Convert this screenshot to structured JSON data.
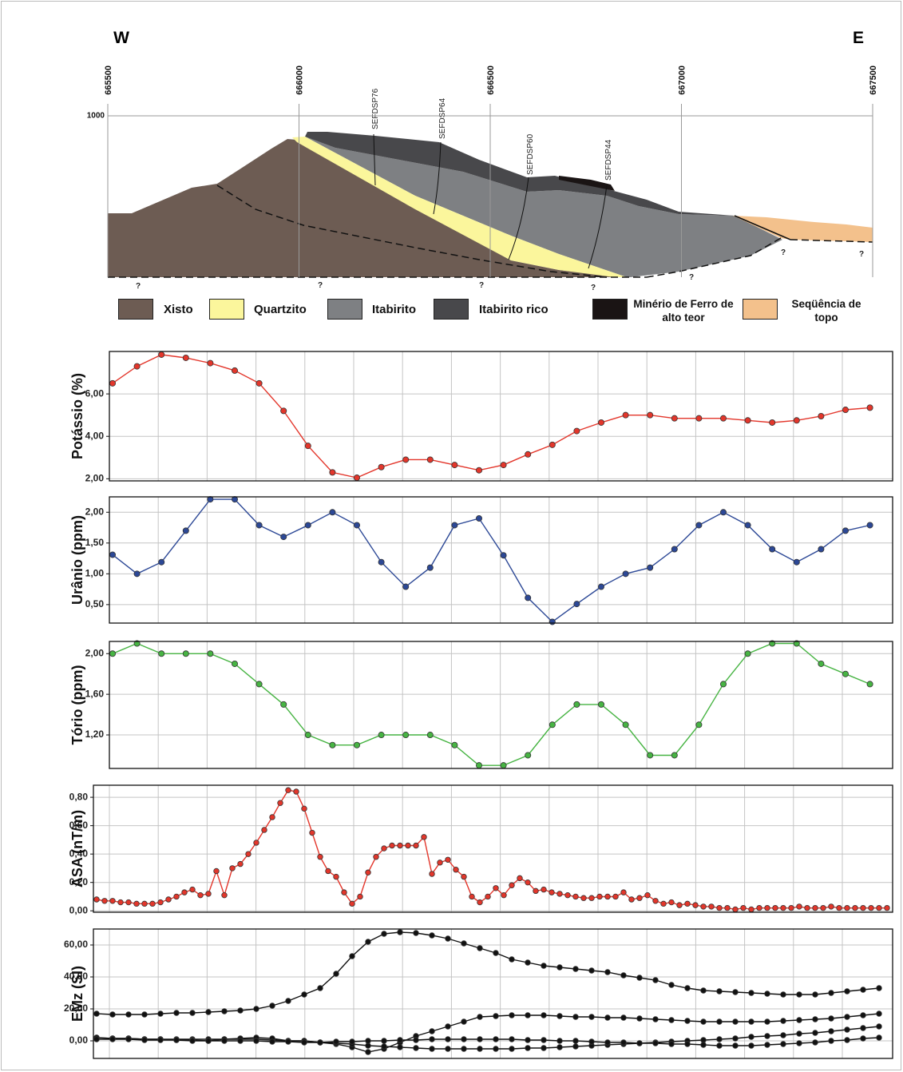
{
  "chart_data": [
    {
      "type": "section",
      "left_label": "W",
      "right_label": "E",
      "xlim": [
        665500,
        667500
      ],
      "xticks": [
        665500,
        666000,
        666500,
        667000,
        667500
      ],
      "yticks": [
        1000
      ],
      "drill_holes": [
        "SEFDSP76",
        "SEFDSP64",
        "SEFDSP60",
        "SEFDSP44"
      ],
      "unknown_marks": [
        "?",
        "?",
        "?",
        "?",
        "?",
        "?",
        "?"
      ],
      "legend": [
        {
          "name": "Xisto",
          "color": "#6d5c53"
        },
        {
          "name": "Quartzito",
          "color": "#fbf69c"
        },
        {
          "name": "Itabirito",
          "color": "#7e8083"
        },
        {
          "name": "Itabirito rico",
          "color": "#48484b"
        },
        {
          "name": "Minério de Ferro de alto teor",
          "color": "#1a1414"
        },
        {
          "name": "Seqüência de topo",
          "color": "#f3c18c"
        }
      ]
    },
    {
      "type": "line",
      "ylabel": "Potássio (%)",
      "ylim": [
        1.9,
        8.0
      ],
      "grid": true,
      "yticks": [
        {
          "value": 2,
          "label": "2,00"
        },
        {
          "value": 4,
          "label": "4,00"
        },
        {
          "value": 6,
          "label": "6,00"
        }
      ],
      "series": [
        {
          "color": "#e3362b",
          "values": [
            6.5,
            7.3,
            7.85,
            7.7,
            7.45,
            7.1,
            6.5,
            5.2,
            3.55,
            2.3,
            2.05,
            2.55,
            2.9,
            2.9,
            2.65,
            2.4,
            2.65,
            3.15,
            3.6,
            4.25,
            4.65,
            5.0,
            5.0,
            4.85,
            4.85,
            4.85,
            4.75,
            4.65,
            4.75,
            4.95,
            5.25,
            5.35
          ]
        }
      ]
    },
    {
      "type": "line",
      "ylabel": "Urânio (ppm)",
      "ylim": [
        0.2,
        2.25
      ],
      "grid": true,
      "yticks": [
        {
          "value": 0.5,
          "label": "0,50"
        },
        {
          "value": 1,
          "label": "1,00"
        },
        {
          "value": 1.5,
          "label": "1,50"
        },
        {
          "value": 2,
          "label": "2,00"
        }
      ],
      "series": [
        {
          "color": "#2c4896",
          "values": [
            1.31,
            1.0,
            1.19,
            1.7,
            2.21,
            2.21,
            1.79,
            1.6,
            1.79,
            2.0,
            1.79,
            1.19,
            0.79,
            1.1,
            1.79,
            1.9,
            1.3,
            0.61,
            0.22,
            0.51,
            0.79,
            1.0,
            1.1,
            1.4,
            1.79,
            2.0,
            1.79,
            1.4,
            1.19,
            1.4,
            1.7,
            1.79
          ]
        }
      ]
    },
    {
      "type": "line",
      "ylabel": "Tório (ppm)",
      "ylim": [
        0.87,
        2.12
      ],
      "grid": true,
      "yticks": [
        {
          "value": 1.2,
          "label": "1,20"
        },
        {
          "value": 1.6,
          "label": "1,60"
        },
        {
          "value": 2,
          "label": "2,00"
        }
      ],
      "series": [
        {
          "color": "#47b443",
          "values": [
            2.0,
            2.1,
            2.0,
            2.0,
            2.0,
            1.9,
            1.7,
            1.5,
            1.2,
            1.1,
            1.1,
            1.2,
            1.2,
            1.2,
            1.1,
            0.9,
            0.9,
            1.0,
            1.3,
            1.5,
            1.5,
            1.3,
            1.0,
            1.0,
            1.3,
            1.7,
            2.0,
            2.1,
            2.1,
            1.9,
            1.8,
            1.7
          ]
        }
      ]
    },
    {
      "type": "line",
      "ylabel": "ASA (nT/m)",
      "ylim": [
        -0.01,
        0.885
      ],
      "grid": true,
      "yticks": [
        {
          "value": 0,
          "label": "0,00"
        },
        {
          "value": 0.2,
          "label": "0,20"
        },
        {
          "value": 0.4,
          "label": "0,40"
        },
        {
          "value": 0.6,
          "label": "0,60"
        },
        {
          "value": 0.8,
          "label": "0,80"
        }
      ],
      "series": [
        {
          "color": "#e3362b",
          "values": [
            0.08,
            0.07,
            0.07,
            0.06,
            0.06,
            0.05,
            0.05,
            0.05,
            0.06,
            0.08,
            0.1,
            0.13,
            0.15,
            0.11,
            0.12,
            0.28,
            0.11,
            0.3,
            0.33,
            0.4,
            0.48,
            0.57,
            0.66,
            0.76,
            0.85,
            0.84,
            0.72,
            0.55,
            0.38,
            0.28,
            0.24,
            0.13,
            0.05,
            0.1,
            0.27,
            0.38,
            0.44,
            0.46,
            0.46,
            0.46,
            0.46,
            0.52,
            0.26,
            0.34,
            0.36,
            0.29,
            0.24,
            0.1,
            0.06,
            0.1,
            0.16,
            0.11,
            0.18,
            0.23,
            0.2,
            0.14,
            0.15,
            0.13,
            0.12,
            0.11,
            0.1,
            0.09,
            0.09,
            0.1,
            0.1,
            0.1,
            0.13,
            0.08,
            0.09,
            0.11,
            0.07,
            0.05,
            0.06,
            0.04,
            0.05,
            0.04,
            0.03,
            0.03,
            0.02,
            0.02,
            0.01,
            0.02,
            0.01,
            0.02,
            0.02,
            0.02,
            0.02,
            0.02,
            0.03,
            0.02,
            0.02,
            0.02,
            0.03,
            0.02,
            0.02,
            0.02,
            0.02,
            0.02,
            0.02,
            0.02
          ]
        }
      ]
    },
    {
      "type": "line",
      "ylabel": "EMz (SI)",
      "ylim": [
        -11,
        70
      ],
      "grid": true,
      "yticks": [
        {
          "value": 0,
          "label": "0,00"
        },
        {
          "value": 20,
          "label": "20,00"
        },
        {
          "value": 40,
          "label": "40,00"
        },
        {
          "value": 60,
          "label": "60,00"
        }
      ],
      "series": [
        {
          "color": "#111111",
          "values": [
            17,
            16.5,
            16.5,
            16.5,
            17,
            17.5,
            17.5,
            18,
            18.5,
            19,
            20,
            22,
            25,
            29,
            33,
            42,
            53,
            62,
            67,
            68,
            67.5,
            66,
            64,
            61,
            58,
            55,
            51,
            49,
            47,
            46,
            45,
            44,
            43,
            41,
            39.5,
            38,
            35,
            33,
            31.5,
            31,
            30.5,
            30,
            29.5,
            29,
            29,
            29,
            30,
            31,
            32,
            33
          ]
        },
        {
          "color": "#111111",
          "values": [
            2,
            1.5,
            1.5,
            1,
            1,
            1,
            1,
            1,
            1,
            1,
            1,
            0.5,
            0,
            0,
            -1,
            -2,
            -4,
            -7,
            -5,
            -1,
            3,
            6,
            9,
            12,
            15,
            15.5,
            16,
            16,
            16,
            15.5,
            15,
            15,
            14.5,
            14.5,
            14,
            13.5,
            13,
            12.5,
            12,
            12,
            12,
            12,
            12,
            12.5,
            13,
            13.5,
            14,
            15,
            16,
            17
          ]
        },
        {
          "color": "#111111",
          "values": [
            2,
            1.5,
            1.5,
            1,
            1,
            0.5,
            0.5,
            0,
            1,
            1.5,
            2,
            1.5,
            0,
            0,
            -1,
            -1.5,
            -2,
            -3,
            -3.5,
            -4,
            -4.5,
            -5,
            -5,
            -5,
            -5,
            -5,
            -5,
            -4.5,
            -4.5,
            -4,
            -3.5,
            -3,
            -2.5,
            -2,
            -1.5,
            -1,
            -0.5,
            0,
            0.5,
            1,
            1.5,
            2.5,
            3,
            3.5,
            4.5,
            5,
            6,
            7,
            8,
            9
          ]
        },
        {
          "color": "#111111",
          "values": [
            1,
            1,
            1,
            0.5,
            0.5,
            0.5,
            0,
            0,
            0,
            0,
            0,
            -0.5,
            -0.5,
            -1,
            -1,
            -0.5,
            -0.5,
            0,
            0,
            0.5,
            0.5,
            1,
            1,
            1,
            1,
            1,
            1,
            0.5,
            0.5,
            0,
            0,
            -0.5,
            -1,
            -1,
            -1.5,
            -1.5,
            -2,
            -2,
            -2.5,
            -3,
            -3,
            -3,
            -2.5,
            -2,
            -1.5,
            -1,
            0,
            0.5,
            1.5,
            2
          ]
        }
      ]
    }
  ]
}
